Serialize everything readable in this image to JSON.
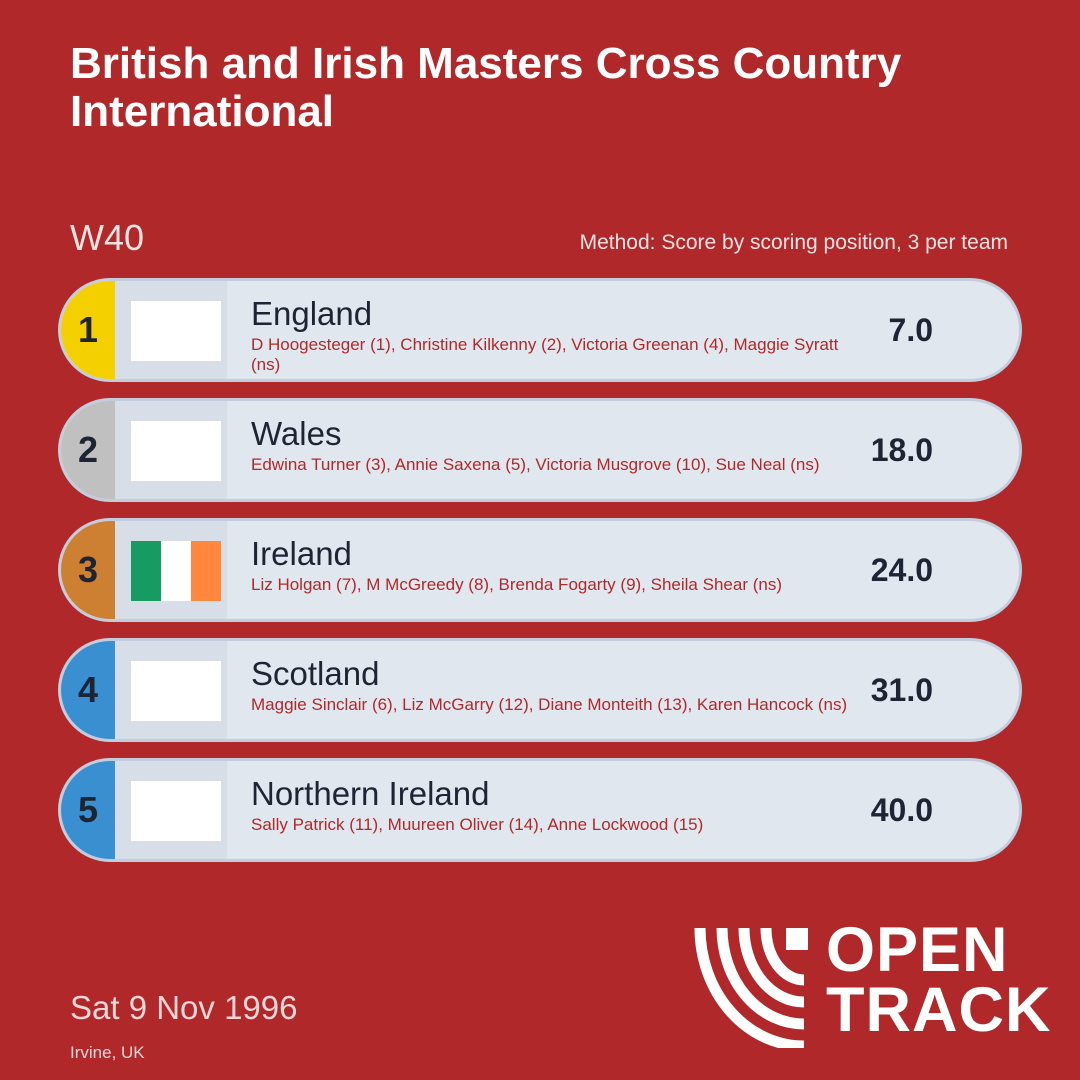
{
  "header": {
    "title": "British and Irish Masters Cross Country International",
    "category": "W40",
    "method": "Method: Score by scoring position, 3 per team"
  },
  "results": [
    {
      "position": "1",
      "team": "England",
      "athletes": "D Hoogesteger (1), Christine Kilkenny (2), Victoria Greenan (4), Maggie Syratt (ns)",
      "score": "7.0",
      "position_color": "#f5d000",
      "flag": "blank"
    },
    {
      "position": "2",
      "team": "Wales",
      "athletes": "Edwina Turner (3), Annie Saxena (5), Victoria Musgrove (10), Sue Neal (ns)",
      "score": "18.0",
      "position_color": "#c0c0c0",
      "flag": "blank"
    },
    {
      "position": "3",
      "team": "Ireland",
      "athletes": "Liz Holgan (7), M McGreedy (8), Brenda Fogarty (9), Sheila Shear (ns)",
      "score": "24.0",
      "position_color": "#cd7f32",
      "flag": "ireland-flag"
    },
    {
      "position": "4",
      "team": "Scotland",
      "athletes": "Maggie Sinclair (6), Liz McGarry (12), Diane Monteith (13), Karen Hancock (ns)",
      "score": "31.0",
      "position_color": "#3a8fd0",
      "flag": "blank"
    },
    {
      "position": "5",
      "team": "Northern Ireland",
      "athletes": "Sally Patrick (11), Muureen Oliver (14), Anne Lockwood (15)",
      "score": "40.0",
      "position_color": "#3a8fd0",
      "flag": "blank"
    }
  ],
  "footer": {
    "date": "Sat 9 Nov 1996",
    "venue": "Irvine, UK",
    "logo_line1": "OPEN",
    "logo_line2": "TRACK"
  },
  "colors": {
    "background": "#b0282a",
    "ireland_green": "#169b62",
    "ireland_white": "#ffffff",
    "ireland_orange": "#ff883e"
  }
}
